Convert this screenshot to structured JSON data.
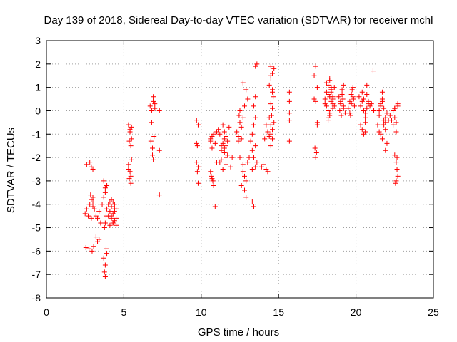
{
  "chart_data": {
    "type": "scatter",
    "title": "Day 139 of 2018, Sidereal Day-to-day VTEC variation (SDTVAR) for receiver mchl",
    "xlabel": "GPS time / hours",
    "ylabel": "SDTVAR / TECUs",
    "xlim": [
      0,
      25
    ],
    "ylim": [
      -8,
      3
    ],
    "xticks": [
      0,
      5,
      10,
      15,
      20,
      25
    ],
    "yticks": [
      -8,
      -7,
      -6,
      -5,
      -4,
      -3,
      -2,
      -1,
      0,
      1,
      2,
      3
    ],
    "grid": true,
    "marker": "+",
    "color": "#ff0000",
    "series": [
      {
        "name": "SDTVAR",
        "x": [
          2.5,
          2.6,
          2.7,
          2.8,
          2.9,
          3.0,
          2.55,
          2.75,
          2.95,
          3.05,
          2.6,
          2.8,
          3.0,
          2.85,
          2.9,
          3.0,
          2.9,
          3.0,
          3.1,
          3.2,
          3.3,
          3.4,
          3.5,
          3.2,
          3.3,
          3.4,
          3.6,
          3.7,
          3.8,
          3.9,
          3.7,
          3.8,
          3.75,
          3.8,
          3.85,
          3.9,
          3.7,
          3.8,
          3.85,
          3.75,
          3.8,
          3.9,
          4.0,
          4.1,
          4.2,
          4.3,
          4.4,
          4.5,
          4.1,
          4.2,
          4.3,
          4.4,
          4.5,
          4.0,
          4.2,
          4.4,
          4.3,
          4.2,
          4.4,
          4.1,
          4.3,
          4.5,
          5.3,
          5.4,
          5.5,
          5.35,
          5.45,
          5.3,
          5.4,
          5.5,
          5.35,
          5.45,
          5.3,
          5.5,
          5.4,
          5.45,
          6.7,
          6.8,
          6.9,
          7.0,
          6.75,
          6.85,
          6.95,
          6.8,
          6.9,
          6.85,
          6.9,
          7.0,
          7.3,
          7.3,
          7.3,
          9.7,
          9.8,
          9.75,
          9.7,
          9.8,
          9.75,
          9.8,
          9.7,
          10.6,
          10.7,
          10.8,
          10.9,
          10.6,
          10.7,
          10.8,
          10.65,
          10.75,
          10.9,
          10.7,
          10.6,
          11.0,
          11.0,
          11.1,
          11.2,
          11.3,
          11.4,
          11.5,
          11.6,
          11.7,
          11.2,
          11.3,
          11.4,
          11.5,
          11.6,
          11.3,
          11.4,
          11.5,
          11.6,
          11.7,
          11.8,
          11.5,
          11.6,
          11.9,
          12.0,
          12.3,
          12.4,
          12.5,
          12.45,
          12.5,
          12.4,
          12.5,
          12.6,
          12.7,
          12.8,
          12.9,
          12.6,
          12.7,
          12.8,
          12.9,
          13.0,
          13.1,
          12.6,
          12.7,
          12.8,
          13.0,
          12.9,
          12.7,
          13.2,
          13.3,
          13.4,
          13.5,
          13.6,
          13.3,
          13.4,
          13.5,
          13.4,
          13.5,
          13.3,
          13.4,
          13.5,
          13.6,
          13.3,
          13.5,
          13.9,
          14.0,
          14.2,
          14.3,
          14.1,
          14.2,
          14.3,
          14.4,
          14.4,
          14.5,
          14.6,
          14.7,
          14.5,
          14.6,
          14.5,
          14.6,
          14.4,
          14.5,
          14.6,
          14.5,
          14.6,
          14.7,
          14.55,
          14.65,
          14.5,
          14.6,
          14.5,
          15.7,
          15.7,
          15.7,
          15.7,
          15.7,
          17.3,
          17.4,
          17.5,
          17.35,
          17.45,
          17.4,
          17.5,
          17.3,
          17.4,
          17.5,
          18.0,
          18.1,
          18.2,
          18.3,
          18.4,
          18.5,
          18.6,
          18.1,
          18.2,
          18.3,
          18.4,
          18.5,
          18.2,
          18.3,
          18.4,
          18.5,
          18.1,
          18.2,
          18.3,
          18.4,
          18.5,
          18.6,
          18.2,
          18.4,
          18.0,
          18.3,
          18.9,
          19.0,
          19.1,
          19.2,
          19.3,
          19.0,
          19.1,
          19.2,
          19.05,
          19.15,
          19.2,
          18.95,
          19.5,
          19.6,
          19.7,
          19.8,
          19.9,
          19.6,
          19.7,
          19.8,
          19.65,
          19.75,
          19.85,
          20.2,
          20.3,
          20.4,
          20.5,
          20.6,
          20.7,
          20.8,
          20.3,
          20.4,
          20.5,
          20.6,
          20.7,
          20.4,
          20.6,
          20.5,
          20.7,
          20.6,
          20.8,
          20.9,
          21.0,
          21.1,
          21.15,
          21.4,
          21.5,
          21.6,
          21.7,
          21.8,
          21.9,
          22.0,
          21.5,
          21.6,
          21.7,
          21.8,
          21.9,
          21.6,
          21.8,
          21.7,
          21.9,
          22.0,
          21.5,
          21.7,
          21.9,
          22.1,
          22.2,
          22.3,
          22.4,
          22.5,
          22.6,
          22.7,
          22.4,
          22.5,
          22.6,
          22.7,
          22.5,
          22.6,
          22.65,
          22.7,
          22.6,
          22.55,
          22.65,
          22.5
        ],
        "y": [
          -4.4,
          -4.2,
          -4.5,
          -4.0,
          -4.6,
          -3.7,
          -5.85,
          -5.9,
          -6.0,
          -5.8,
          -2.3,
          -2.2,
          -2.5,
          -3.6,
          -3.8,
          -4.1,
          -2.4,
          -3.9,
          -4.2,
          -4.5,
          -4.6,
          -4.3,
          -4.8,
          -5.4,
          -5.6,
          -5.5,
          -4.0,
          -3.7,
          -3.5,
          -3.2,
          -6.3,
          -6.6,
          -6.9,
          -7.1,
          -5.9,
          -6.1,
          -3.0,
          -4.8,
          -4.5,
          -5.0,
          -3.3,
          -4.2,
          -4.0,
          -4.3,
          -4.5,
          -4.8,
          -4.2,
          -4.6,
          -3.9,
          -4.1,
          -4.4,
          -4.7,
          -4.9,
          -4.5,
          -3.8,
          -4.0,
          -4.8,
          -4.6,
          -4.3,
          -4.9,
          -3.9,
          -4.2,
          -0.6,
          -0.8,
          -0.7,
          -1.3,
          -1.5,
          -2.3,
          -2.6,
          -2.1,
          -2.9,
          -3.1,
          -2.5,
          -1.2,
          -0.9,
          -2.8,
          0.2,
          0.0,
          0.4,
          0.1,
          -1.3,
          -1.6,
          -1.1,
          -0.5,
          -2.1,
          -1.9,
          0.6,
          0.3,
          0.0,
          -1.7,
          -3.6,
          -0.4,
          -0.6,
          -1.5,
          -1.4,
          -2.4,
          -2.6,
          -3.1,
          -2.2,
          -1.3,
          -1.1,
          -1.0,
          -1.4,
          -2.6,
          -2.9,
          -3.2,
          -2.8,
          -3.0,
          -4.1,
          -1.6,
          -1.2,
          -0.9,
          -2.2,
          -0.8,
          -1.0,
          -1.5,
          -0.6,
          -1.8,
          -2.0,
          -1.3,
          -2.2,
          -1.7,
          -2.5,
          -0.9,
          -1.1,
          -2.1,
          -1.4,
          -1.6,
          -2.3,
          -1.9,
          -0.7,
          -1.2,
          -1.5,
          -2.4,
          -2.0,
          -0.9,
          -1.1,
          -0.5,
          -0.2,
          0.0,
          -1.3,
          -2.0,
          -1.2,
          -2.3,
          -2.8,
          -3.0,
          -3.2,
          -2.6,
          -3.4,
          -3.7,
          -2.2,
          -2.0,
          -0.7,
          -0.3,
          0.2,
          0.5,
          0.9,
          1.2,
          -1.3,
          -1.7,
          -2.0,
          -2.4,
          -2.2,
          -1.0,
          -0.6,
          -0.3,
          0.2,
          0.6,
          -3.9,
          -4.1,
          1.9,
          2.0,
          -2.5,
          -1.5,
          -2.4,
          -2.3,
          -2.5,
          -2.6,
          -1.2,
          -0.6,
          -0.9,
          -1.1,
          1.1,
          1.4,
          1.6,
          1.8,
          1.9,
          0.9,
          0.3,
          0.1,
          -0.3,
          -0.6,
          -0.8,
          -1.0,
          -1.2,
          -0.5,
          -0.2,
          0.6,
          -1.5,
          0.8,
          1.5,
          0.8,
          0.4,
          -0.4,
          -1.3,
          -0.1,
          0.5,
          0.4,
          -0.5,
          -1.6,
          -1.8,
          -2.0,
          1.0,
          1.5,
          1.9,
          -0.6,
          0.5,
          0.8,
          1.1,
          1.3,
          0.9,
          0.6,
          1.0,
          0.2,
          0.0,
          -0.2,
          0.4,
          0.1,
          -0.4,
          0.6,
          0.9,
          0.3,
          1.2,
          0.7,
          -0.1,
          0.8,
          0.5,
          0.2,
          -0.3,
          1.0,
          0.3,
          1.4,
          0.6,
          0.3,
          0.9,
          0.1,
          -0.1,
          0.4,
          0.7,
          0.2,
          -0.2,
          0.5,
          1.1,
          0.0,
          0.1,
          0.4,
          0.7,
          1.0,
          0.2,
          -0.1,
          0.3,
          0.6,
          -0.2,
          0.9,
          0.5,
          0.6,
          0.2,
          0.4,
          0.0,
          -0.3,
          0.7,
          0.3,
          -0.6,
          -0.8,
          -1.0,
          -0.5,
          0.1,
          0.8,
          -0.9,
          0.5,
          1.1,
          -0.1,
          0.4,
          0.2,
          0.3,
          1.7,
          0.0,
          -0.6,
          -0.2,
          0.2,
          0.5,
          -0.4,
          -0.8,
          -0.1,
          0.0,
          0.3,
          0.8,
          0.1,
          -0.5,
          -1.0,
          -0.6,
          0.4,
          -0.3,
          -1.4,
          -0.9,
          -1.2,
          -1.7,
          -0.4,
          -0.2,
          -0.4,
          -0.6,
          0.1,
          -0.9,
          0.3,
          0.0,
          -0.3,
          -0.5,
          0.2,
          -1.9,
          -2.2,
          -2.5,
          -2.8,
          -3.0,
          -3.1,
          -2.0,
          0.1
        ]
      }
    ]
  }
}
